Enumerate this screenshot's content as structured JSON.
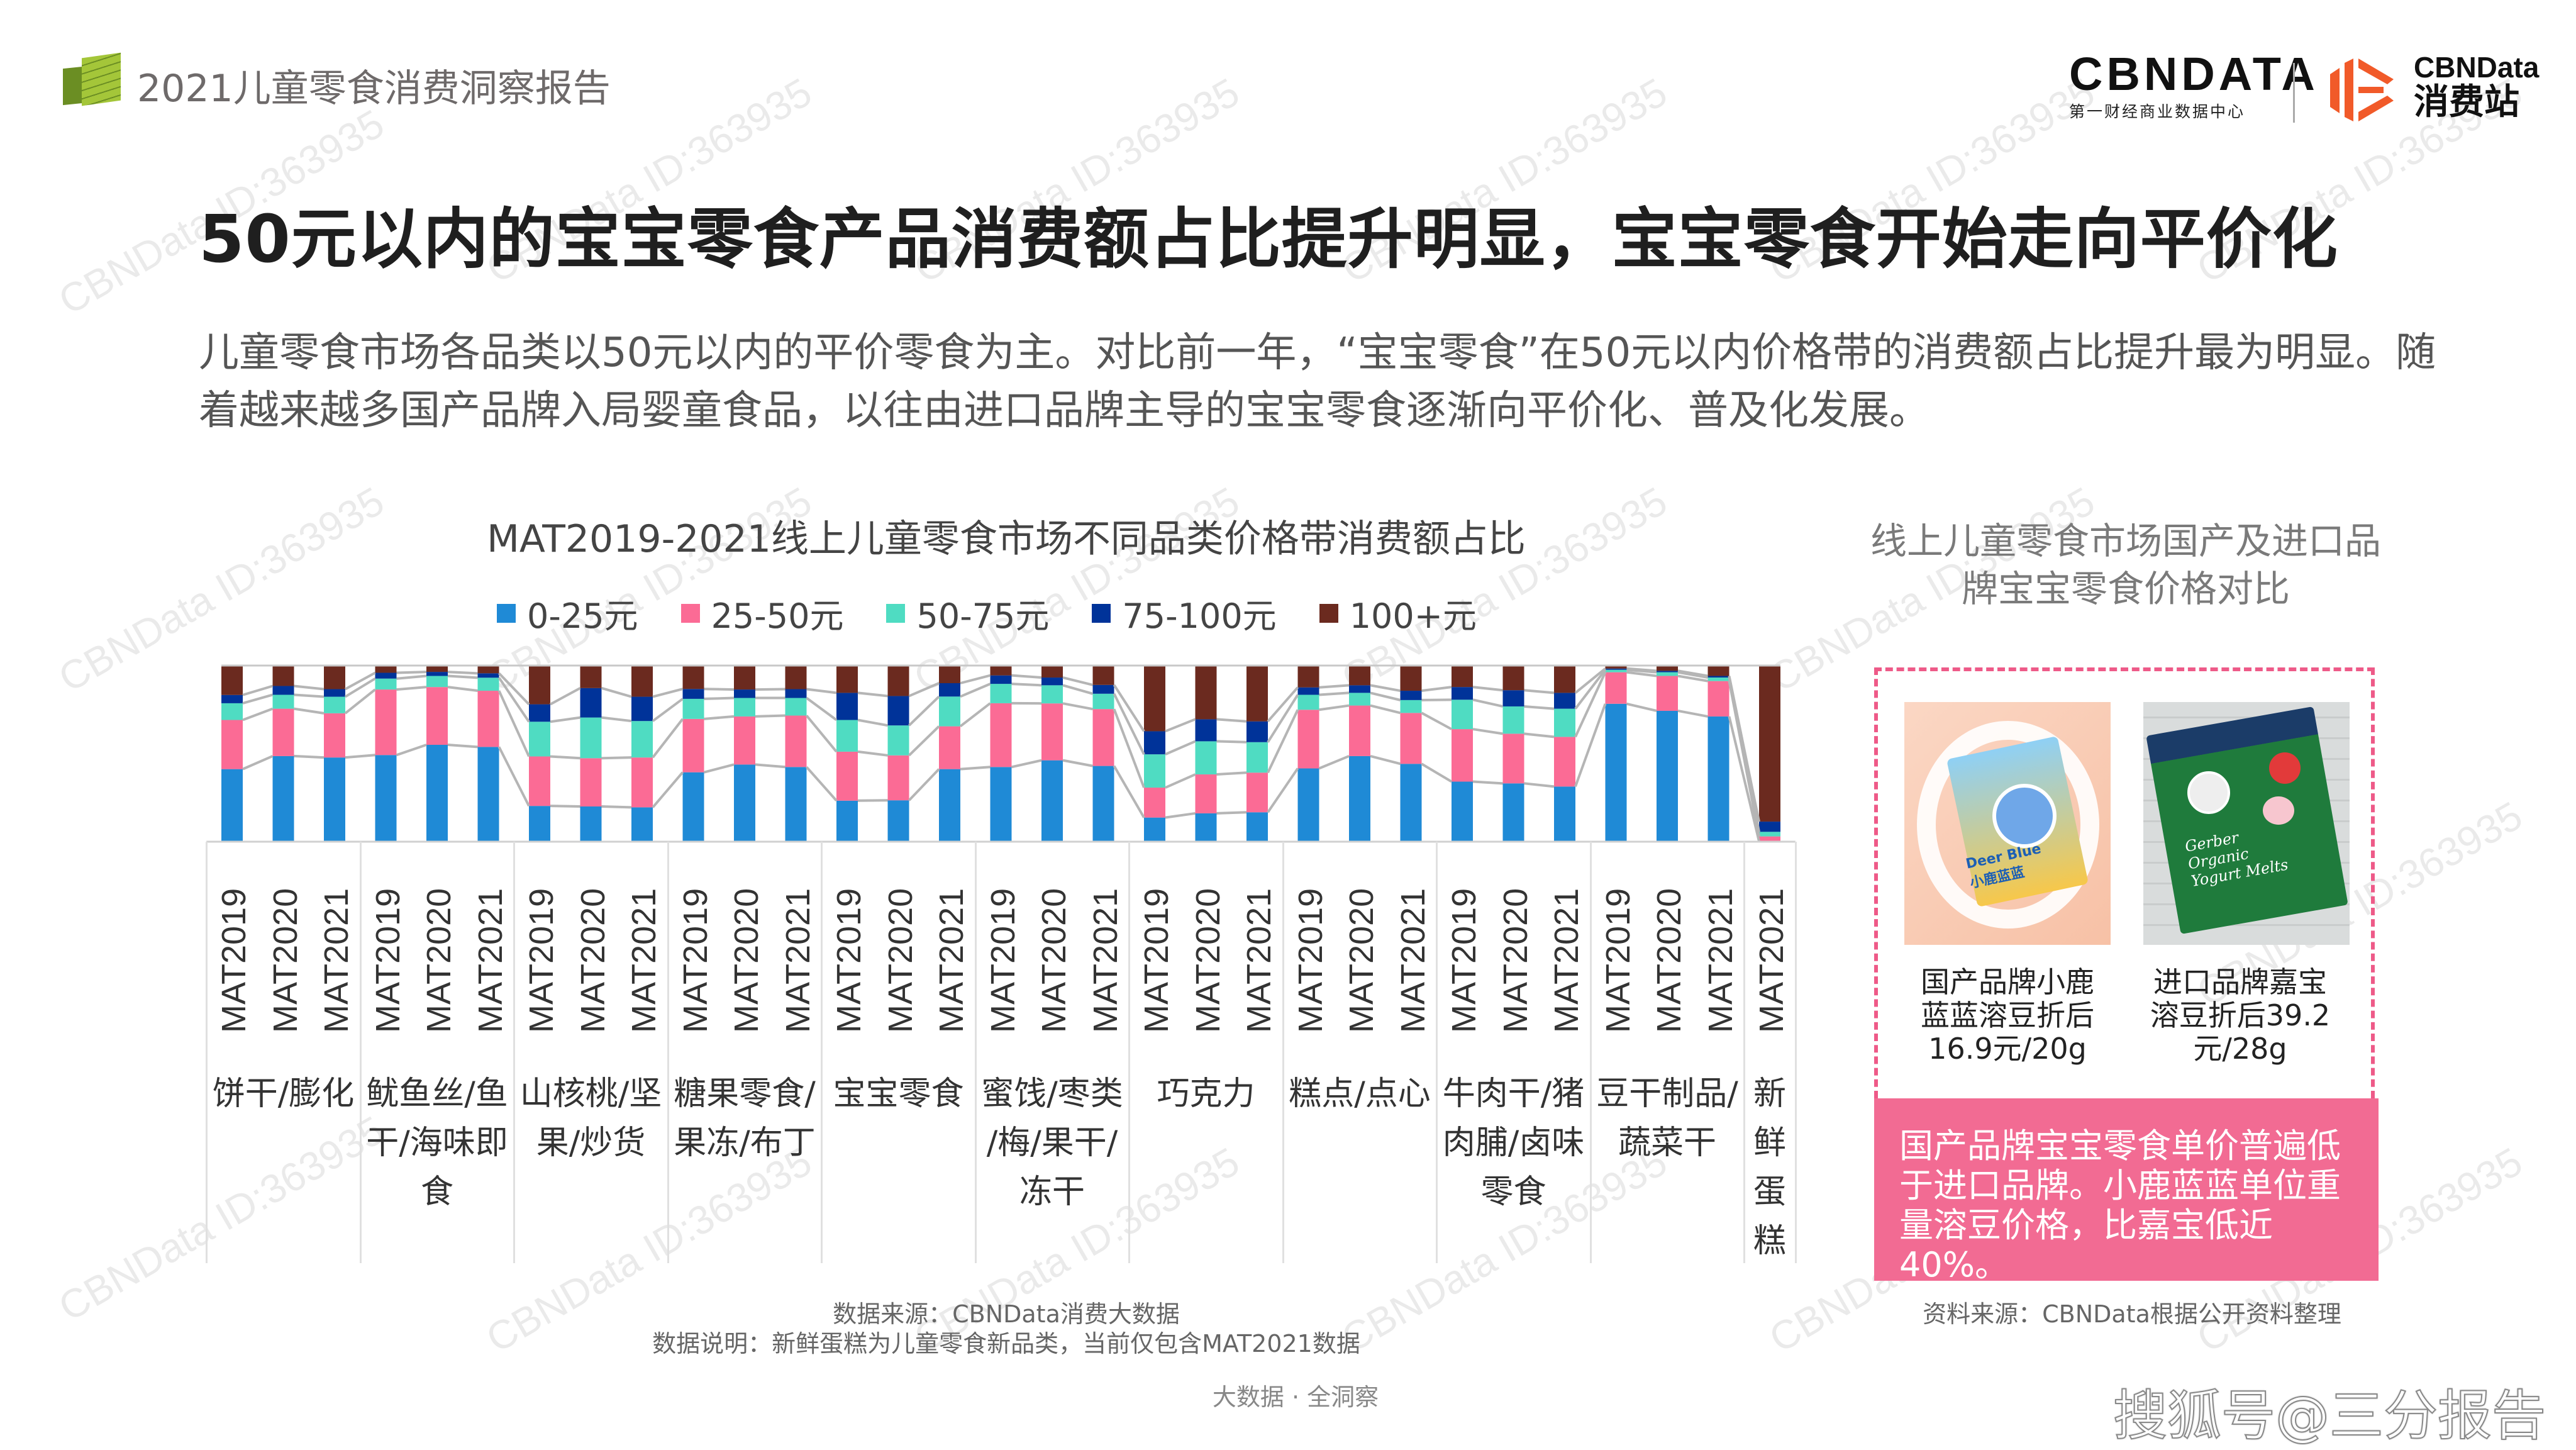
{
  "header": {
    "title": "2021儿童零食消费洞察报告",
    "logo_main": "CBNDATA",
    "logo_main_sub": "第一财经商业数据中心",
    "logo_second": "CBNData",
    "logo_second_sub": "消费站"
  },
  "page_title": "50元以内的宝宝零食产品消费额占比提升明显，宝宝零食开始走向平价化",
  "intro": "儿童零食市场各品类以50元以内的平价零食为主。对比前一年，“宝宝零食”在50元以内价格带的消费额占比提升最为明显。随着越来越多国产品牌入局婴童食品，以往由进口品牌主导的宝宝零食逐渐向平价化、普及化发展。",
  "watermark": "CBNData ID:363935",
  "chart_data": {
    "type": "bar",
    "stacked": true,
    "normalized": true,
    "title": "MAT2019-2021线上儿童零食市场不同品类价格带消费额占比",
    "legend_position": "top",
    "ylim": [
      0,
      100
    ],
    "series_names": [
      "0-25元",
      "25-50元",
      "50-75元",
      "75-100元",
      "100+元"
    ],
    "colors": [
      "#1f8ad6",
      "#fb6b95",
      "#4fdcc2",
      "#003399",
      "#6b2a1f"
    ],
    "groups": [
      {
        "label": "饼干/膨化",
        "bars": [
          {
            "period": "MAT2019",
            "values": [
              41.2,
              27.9,
              9.5,
              4.7,
              16.7
            ]
          },
          {
            "period": "MAT2020",
            "values": [
              48.6,
              26.9,
              7.9,
              5.0,
              11.6
            ]
          },
          {
            "period": "MAT2021",
            "values": [
              47.8,
              25.1,
              9.4,
              4.3,
              13.4
            ]
          }
        ]
      },
      {
        "label": "鱿鱼丝/鱼\n干/海味即\n食",
        "bars": [
          {
            "period": "MAT2019",
            "values": [
              49.2,
              37.2,
              6.2,
              3.3,
              4.1
            ]
          },
          {
            "period": "MAT2020",
            "values": [
              55.0,
              32.8,
              6.3,
              2.3,
              3.6
            ]
          },
          {
            "period": "MAT2021",
            "values": [
              53.8,
              31.9,
              7.4,
              2.5,
              4.4
            ]
          }
        ]
      },
      {
        "label": "山核桃/坚\n果/炒货",
        "bars": [
          {
            "period": "MAT2019",
            "values": [
              20.3,
              28.1,
              19.7,
              9.9,
              22.0
            ]
          },
          {
            "period": "MAT2020",
            "values": [
              20.0,
              27.4,
              23.1,
              16.7,
              12.8
            ]
          },
          {
            "period": "MAT2021",
            "values": [
              19.5,
              28.3,
              20.7,
              13.8,
              17.7
            ]
          }
        ]
      },
      {
        "label": "糖果零食/\n果冻/布丁",
        "bars": [
          {
            "period": "MAT2019",
            "values": [
              39.4,
              30.3,
              11.4,
              5.6,
              13.3
            ]
          },
          {
            "period": "MAT2020",
            "values": [
              43.8,
              27.3,
              10.5,
              4.8,
              13.6
            ]
          },
          {
            "period": "MAT2021",
            "values": [
              42.4,
              29.2,
              10.0,
              5.0,
              13.4
            ]
          }
        ]
      },
      {
        "label": "宝宝零食",
        "bars": [
          {
            "period": "MAT2019",
            "values": [
              23.3,
              27.8,
              18.0,
              15.4,
              15.5
            ]
          },
          {
            "period": "MAT2020",
            "values": [
              23.5,
              25.5,
              17.0,
              16.7,
              17.3
            ]
          },
          {
            "period": "MAT2021",
            "values": [
              41.2,
              24.3,
              16.9,
              7.6,
              10.0
            ]
          }
        ]
      },
      {
        "label": "蜜饯/枣类\n/梅/果干/\n冻干",
        "bars": [
          {
            "period": "MAT2019",
            "values": [
              42.4,
              36.2,
              11.0,
              4.8,
              5.6
            ]
          },
          {
            "period": "MAT2020",
            "values": [
              46.2,
              32.3,
              10.3,
              4.4,
              6.8
            ]
          },
          {
            "period": "MAT2021",
            "values": [
              43.0,
              32.3,
              8.7,
              5.0,
              11.0
            ]
          }
        ]
      },
      {
        "label": "巧克力",
        "bars": [
          {
            "period": "MAT2019",
            "values": [
              13.7,
              17.0,
              18.9,
              13.1,
              37.3
            ]
          },
          {
            "period": "MAT2020",
            "values": [
              16.1,
              22.1,
              18.8,
              12.5,
              30.5
            ]
          },
          {
            "period": "MAT2021",
            "values": [
              16.7,
              22.5,
              17.3,
              11.8,
              31.7
            ]
          }
        ]
      },
      {
        "label": "糕点/点心",
        "bars": [
          {
            "period": "MAT2019",
            "values": [
              41.6,
              33.3,
              8.5,
              4.2,
              12.4
            ]
          },
          {
            "period": "MAT2020",
            "values": [
              48.6,
              28.7,
              7.2,
              4.3,
              11.2
            ]
          },
          {
            "period": "MAT2021",
            "values": [
              44.2,
              28.9,
              7.3,
              5.3,
              14.3
            ]
          }
        ]
      },
      {
        "label": "牛肉干/猪\n肉脯/卤味\n零食",
        "bars": [
          {
            "period": "MAT2019",
            "values": [
              34.1,
              29.8,
              16.7,
              7.2,
              12.2
            ]
          },
          {
            "period": "MAT2020",
            "values": [
              33.1,
              28.2,
              15.5,
              9.2,
              14.0
            ]
          },
          {
            "period": "MAT2021",
            "values": [
              31.3,
              28.2,
              16.0,
              9.0,
              15.5
            ]
          }
        ]
      },
      {
        "label": "豆干制品/\n蔬菜干",
        "bars": [
          {
            "period": "MAT2019",
            "values": [
              78.3,
              17.9,
              1.4,
              0.7,
              1.7
            ]
          },
          {
            "period": "MAT2020",
            "values": [
              74.3,
              19.8,
              2.1,
              0.8,
              3.0
            ]
          },
          {
            "period": "MAT2021",
            "values": [
              71.1,
              20.1,
              2.0,
              0.9,
              5.9
            ]
          }
        ]
      },
      {
        "label": "新\n鲜\n蛋\n糕",
        "bars": [
          {
            "period": "MAT2021",
            "values": [
              0.2,
              2.8,
              2.6,
              5.8,
              88.6
            ]
          }
        ]
      }
    ]
  },
  "notes": {
    "source": "数据来源：CBNData消费大数据",
    "explain": "数据说明：新鲜蛋糕为儿童零食新品类，当前仅包含MAT2021数据"
  },
  "footer": {
    "slogan": "大数据 · 全洞察",
    "sohu": "搜狐号@三分报告"
  },
  "right_panel": {
    "title": "线上儿童零食市场国产及进口品牌宝宝零食价格对比",
    "products": [
      {
        "caption": "国产品牌小鹿\n蓝蓝溶豆折后\n16.9元/20g",
        "pack_text": "Deer Blue 小鹿蓝蓝"
      },
      {
        "caption": "进口品牌嘉宝\n溶豆折后39.2\n元/28g",
        "pack_text": "Gerber Organic Yogurt Melts"
      }
    ],
    "highlight": "国产品牌宝宝零食单价普遍低于进口品牌。小鹿蓝蓝单位重量溶豆价格，比嘉宝低近40%。",
    "source": "资料来源：CBNData根据公开资料整理",
    "accent": "#f26b93"
  }
}
